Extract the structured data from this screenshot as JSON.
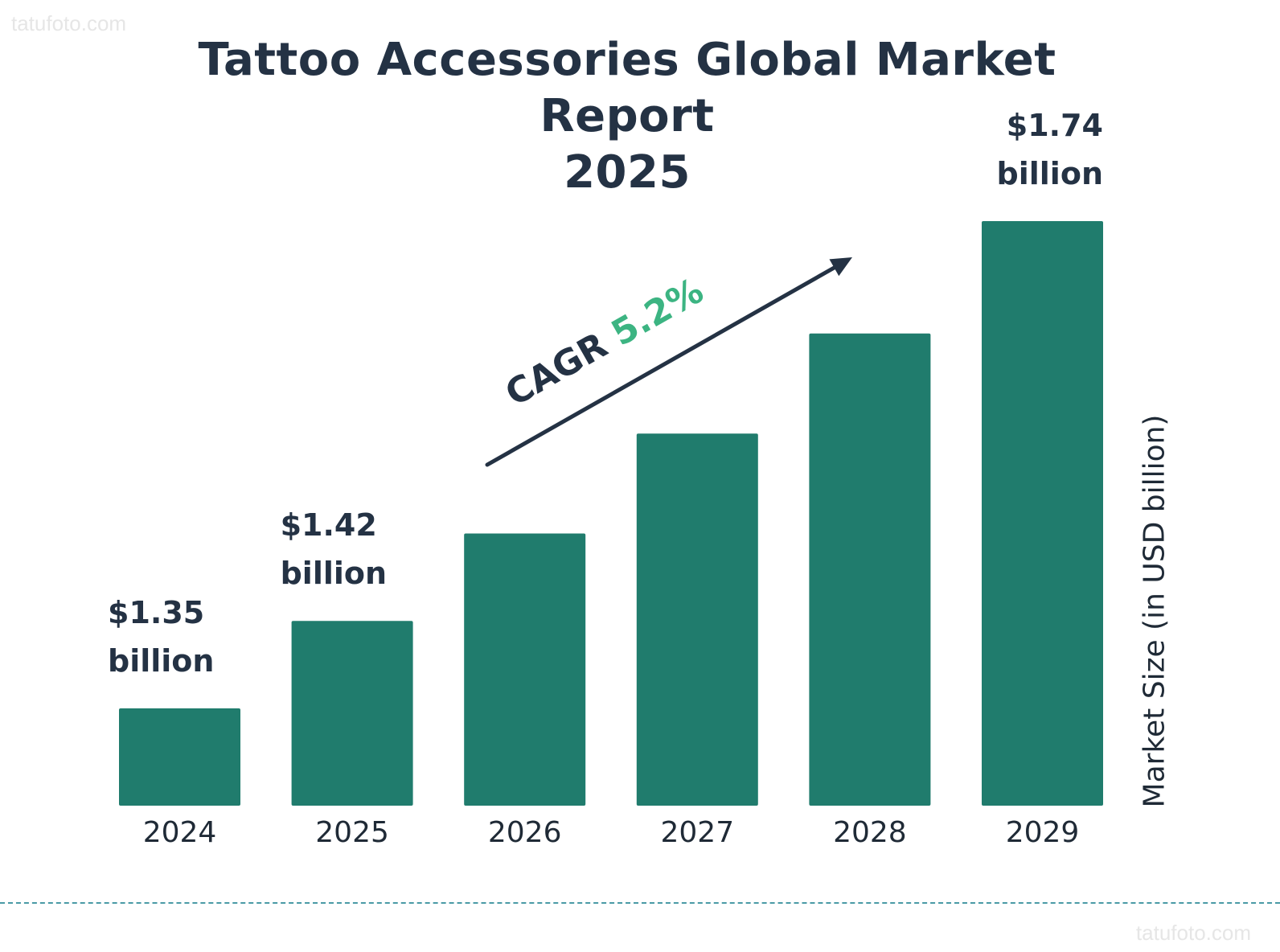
{
  "watermark": "tatufoto.com",
  "chart_data": {
    "type": "bar",
    "title": "Tattoo Accessories Global Market Report 2025",
    "title_lines": [
      "Tattoo Accessories Global Market Report",
      "2025"
    ],
    "ylabel": "Market Size (in USD billion)",
    "categories": [
      "2024",
      "2025",
      "2026",
      "2027",
      "2028",
      "2029"
    ],
    "values": [
      1.35,
      1.42,
      1.49,
      1.57,
      1.65,
      1.74
    ],
    "labels": [
      {
        "index": 0,
        "lines": [
          "$1.35",
          "billion"
        ]
      },
      {
        "index": 1,
        "lines": [
          "$1.42",
          "billion"
        ]
      },
      {
        "index": 5,
        "lines": [
          "$1.74",
          "billion"
        ]
      }
    ],
    "annotation": {
      "prefix": "CAGR",
      "value": "5.2%"
    },
    "colors": {
      "bar": "#207c6d",
      "text": "#243244",
      "cagr_value": "#3cb482",
      "arrow": "#243244"
    },
    "grid": false,
    "legend": "none"
  }
}
